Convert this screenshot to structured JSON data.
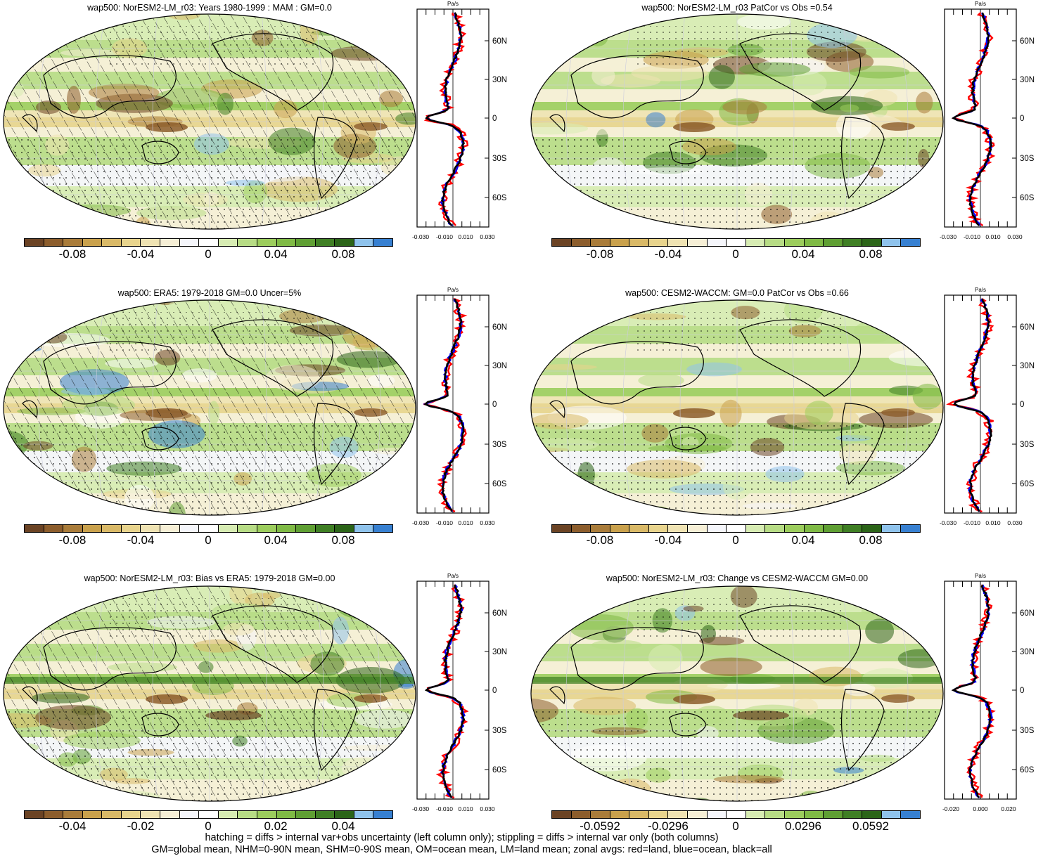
{
  "colors": {
    "palette": [
      "#6b4324",
      "#8c5d2c",
      "#a97c3a",
      "#c9a14c",
      "#d9b967",
      "#e8d48d",
      "#efe3b3",
      "#f6efd6",
      "#f5f6fb",
      "#ffffff",
      "#d7ecb3",
      "#b7dc85",
      "#9ccd5d",
      "#7fba45",
      "#5f9f33",
      "#3f7f24",
      "#2b6418",
      "#8fc3ec",
      "#3780d1"
    ],
    "zonal_land": "#ff0000",
    "zonal_ocean": "#0000ff",
    "zonal_all": "#000000"
  },
  "panels": [
    {
      "title": "wap500: NorESM2-LM_r03: Years 1980-1999 : MAM : GM=0.0",
      "cbar": [
        "-0.08",
        "-0.04",
        "0",
        "0.04",
        "0.08"
      ],
      "zonal_ticks": [
        "-0.030",
        "-0.010",
        "0.010",
        "0.030"
      ],
      "zonal_unit": "Pa/s",
      "lat_labels": [
        "60N",
        "30N",
        "0",
        "30S",
        "60S"
      ],
      "hatch": true
    },
    {
      "title": "wap500: NorESM2-LM_r03 PatCor vs Obs =0.54",
      "cbar": [
        "-0.08",
        "-0.04",
        "0",
        "0.04",
        "0.08"
      ],
      "zonal_ticks": [
        "-0.030",
        "-0.010",
        "0.010",
        "0.030"
      ],
      "zonal_unit": "Pa/s",
      "lat_labels": [
        "60N",
        "30N",
        "0",
        "30S",
        "60S"
      ],
      "hatch": false
    },
    {
      "title": "wap500: ERA5: 1979-2018 GM=0.0 Uncer=5%",
      "cbar": [
        "-0.08",
        "-0.04",
        "0",
        "0.04",
        "0.08"
      ],
      "zonal_ticks": [
        "-0.030",
        "-0.010",
        "0.010",
        "0.030"
      ],
      "zonal_unit": "Pa/s",
      "lat_labels": [
        "60N",
        "30N",
        "0",
        "30S",
        "60S"
      ],
      "hatch": true
    },
    {
      "title": "wap500: CESM2-WACCM: GM=0.0 PatCor vs Obs =0.66",
      "cbar": [
        "-0.08",
        "-0.04",
        "0",
        "0.04",
        "0.08"
      ],
      "zonal_ticks": [
        "-0.030",
        "-0.010",
        "0.010",
        "0.030"
      ],
      "zonal_unit": "Pa/s",
      "lat_labels": [
        "60N",
        "30N",
        "0",
        "30S",
        "60S"
      ],
      "hatch": false
    },
    {
      "title": "wap500: NorESM2-LM_r03: Bias vs ERA5: 1979-2018 GM=0.00",
      "cbar": [
        "-0.04",
        "-0.02",
        "0",
        "0.02",
        "0.04"
      ],
      "zonal_ticks": [
        "-0.030",
        "-0.010",
        "0.010",
        "0.030"
      ],
      "zonal_unit": "Pa/s",
      "lat_labels": [
        "60N",
        "30N",
        "0",
        "30S",
        "60S"
      ],
      "hatch": true
    },
    {
      "title": "wap500: NorESM2-LM_r03: Change vs CESM2-WACCM GM=0.00",
      "cbar": [
        "-0.0592",
        "-0.0296",
        "0",
        "0.0296",
        "0.0592"
      ],
      "zonal_ticks": [
        "-0.020",
        "0.000",
        "0.020"
      ],
      "zonal_unit": "Pa/s",
      "lat_labels": [
        "60N",
        "30N",
        "0",
        "30S",
        "60S"
      ],
      "hatch": false
    }
  ],
  "footer": {
    "line1": "hatching = diffs > internal var+obs uncertainty (left column only); stippling = diffs > internal var only (both columns)",
    "line2": "GM=global mean, NHM=0-90N mean, SHM=0-90S mean, OM=ocean mean, LM=land mean; zonal avgs: red=land, blue=ocean, black=all"
  },
  "chart_data": [
    {
      "type": "heatmap",
      "title": "wap500: NorESM2-LM_r03: Years 1980-1999 : MAM : GM=0.0",
      "colorbar_ticks": [
        -0.08,
        -0.04,
        0,
        0.04,
        0.08
      ],
      "zonal_mean_xticks": [
        -0.03,
        -0.01,
        0.01,
        0.03
      ],
      "zonal_mean_unit": "Pa/s",
      "lat_ticks": [
        "60N",
        "30N",
        "0",
        "30S",
        "60S"
      ]
    },
    {
      "type": "heatmap",
      "title": "wap500: NorESM2-LM_r03 PatCor vs Obs =0.54",
      "colorbar_ticks": [
        -0.08,
        -0.04,
        0,
        0.04,
        0.08
      ],
      "zonal_mean_xticks": [
        -0.03,
        -0.01,
        0.01,
        0.03
      ],
      "zonal_mean_unit": "Pa/s",
      "lat_ticks": [
        "60N",
        "30N",
        "0",
        "30S",
        "60S"
      ]
    },
    {
      "type": "heatmap",
      "title": "wap500: ERA5: 1979-2018 GM=0.0 Uncer=5%",
      "colorbar_ticks": [
        -0.08,
        -0.04,
        0,
        0.04,
        0.08
      ],
      "zonal_mean_xticks": [
        -0.03,
        -0.01,
        0.01,
        0.03
      ],
      "zonal_mean_unit": "Pa/s",
      "lat_ticks": [
        "60N",
        "30N",
        "0",
        "30S",
        "60S"
      ]
    },
    {
      "type": "heatmap",
      "title": "wap500: CESM2-WACCM: GM=0.0 PatCor vs Obs =0.66",
      "colorbar_ticks": [
        -0.08,
        -0.04,
        0,
        0.04,
        0.08
      ],
      "zonal_mean_xticks": [
        -0.03,
        -0.01,
        0.01,
        0.03
      ],
      "zonal_mean_unit": "Pa/s",
      "lat_ticks": [
        "60N",
        "30N",
        "0",
        "30S",
        "60S"
      ]
    },
    {
      "type": "heatmap",
      "title": "wap500: NorESM2-LM_r03: Bias vs ERA5: 1979-2018 GM=0.00",
      "colorbar_ticks": [
        -0.04,
        -0.02,
        0,
        0.02,
        0.04
      ],
      "zonal_mean_xticks": [
        -0.03,
        -0.01,
        0.01,
        0.03
      ],
      "zonal_mean_unit": "Pa/s",
      "lat_ticks": [
        "60N",
        "30N",
        "0",
        "30S",
        "60S"
      ]
    },
    {
      "type": "heatmap",
      "title": "wap500: NorESM2-LM_r03: Change vs CESM2-WACCM GM=0.00",
      "colorbar_ticks": [
        -0.0592,
        -0.0296,
        0,
        0.0296,
        0.0592
      ],
      "zonal_mean_xticks": [
        -0.02,
        0,
        0.02
      ],
      "zonal_mean_unit": "Pa/s",
      "lat_ticks": [
        "60N",
        "30N",
        "0",
        "30S",
        "60S"
      ]
    }
  ]
}
